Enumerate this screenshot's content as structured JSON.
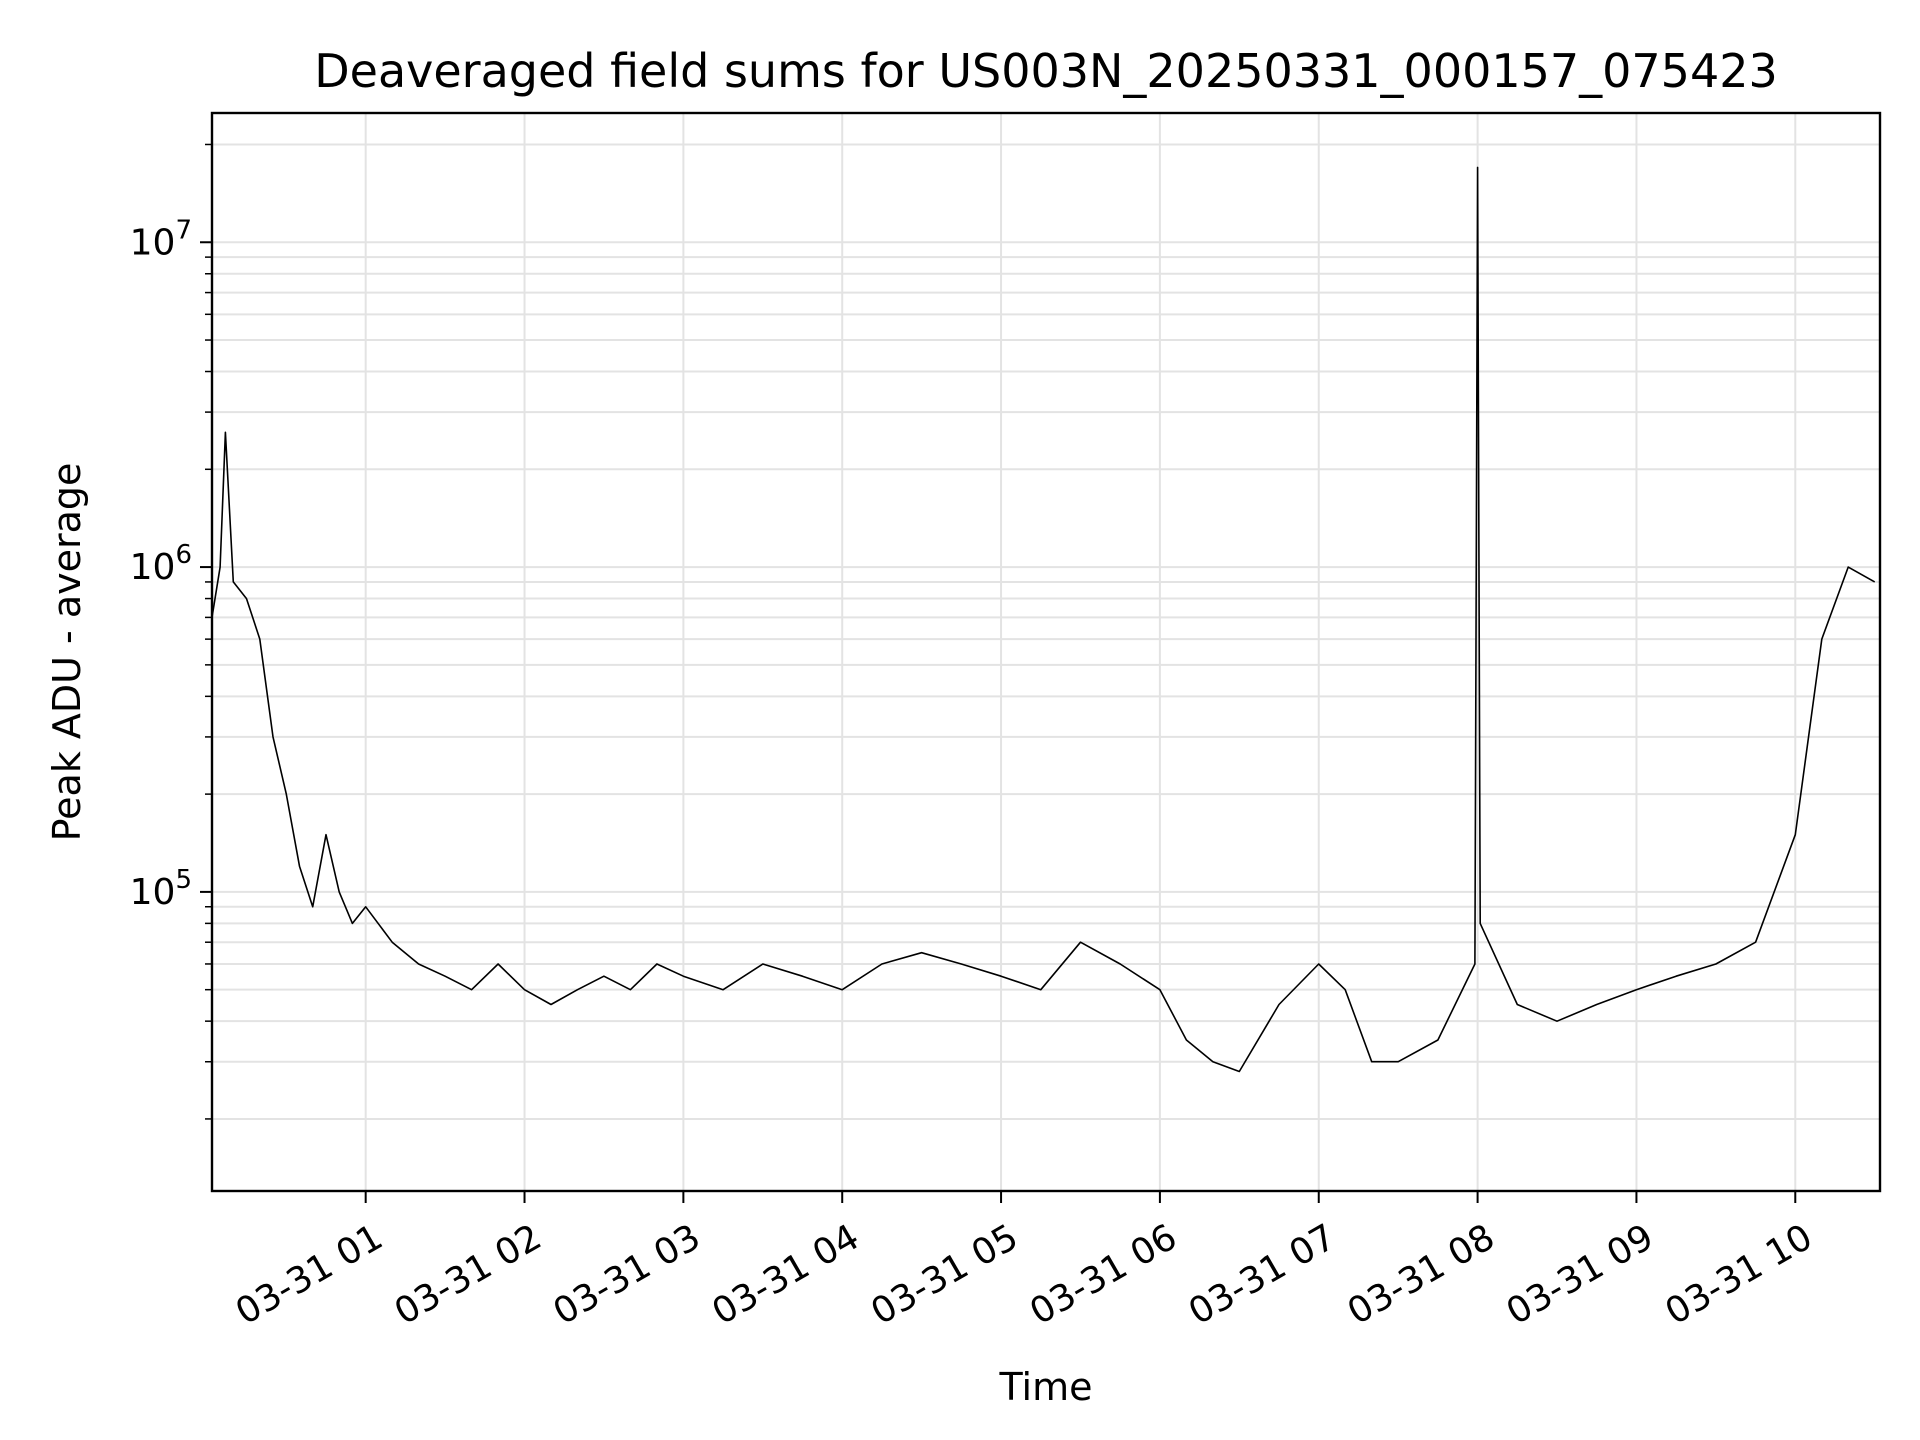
{
  "chart_data": {
    "type": "line",
    "title": "Deaveraged field sums for US003N_20250331_000157_075423",
    "xlabel": "Time",
    "ylabel": "Peak ADU - average",
    "yscale": "log",
    "ylim": [
      12000,
      25000000
    ],
    "xlim": [
      "2025-03-31 00:01:57",
      "2025-03-31 10:32:00"
    ],
    "x_ticks": [
      "03-31 01",
      "03-31 02",
      "03-31 03",
      "03-31 04",
      "03-31 05",
      "03-31 06",
      "03-31 07",
      "03-31 08",
      "03-31 09",
      "03-31 10"
    ],
    "y_ticks": [
      {
        "base": "10",
        "exp": "5",
        "value": 100000
      },
      {
        "base": "10",
        "exp": "6",
        "value": 1000000
      },
      {
        "base": "10",
        "exp": "7",
        "value": 10000000
      }
    ],
    "grid": true,
    "line_color": "#000000",
    "series": [
      {
        "x": [
          "2025-03-31 00:01:57",
          "2025-03-31 00:05",
          "2025-03-31 00:07",
          "2025-03-31 00:10",
          "2025-03-31 00:15",
          "2025-03-31 00:20",
          "2025-03-31 00:25",
          "2025-03-31 00:30",
          "2025-03-31 00:35",
          "2025-03-31 00:40",
          "2025-03-31 00:45",
          "2025-03-31 00:50",
          "2025-03-31 00:55",
          "2025-03-31 01:00",
          "2025-03-31 01:10",
          "2025-03-31 01:20",
          "2025-03-31 01:30",
          "2025-03-31 01:40",
          "2025-03-31 01:50",
          "2025-03-31 02:00",
          "2025-03-31 02:10",
          "2025-03-31 02:20",
          "2025-03-31 02:30",
          "2025-03-31 02:40",
          "2025-03-31 02:50",
          "2025-03-31 03:00",
          "2025-03-31 03:15",
          "2025-03-31 03:30",
          "2025-03-31 03:45",
          "2025-03-31 04:00",
          "2025-03-31 04:15",
          "2025-03-31 04:30",
          "2025-03-31 04:45",
          "2025-03-31 05:00",
          "2025-03-31 05:15",
          "2025-03-31 05:30",
          "2025-03-31 05:45",
          "2025-03-31 06:00",
          "2025-03-31 06:10",
          "2025-03-31 06:20",
          "2025-03-31 06:30",
          "2025-03-31 06:45",
          "2025-03-31 07:00",
          "2025-03-31 07:10",
          "2025-03-31 07:20",
          "2025-03-31 07:30",
          "2025-03-31 07:45",
          "2025-03-31 07:59",
          "2025-03-31 08:00",
          "2025-03-31 08:01",
          "2025-03-31 08:15",
          "2025-03-31 08:30",
          "2025-03-31 08:45",
          "2025-03-31 09:00",
          "2025-03-31 09:15",
          "2025-03-31 09:30",
          "2025-03-31 09:45",
          "2025-03-31 10:00",
          "2025-03-31 10:10",
          "2025-03-31 10:20",
          "2025-03-31 10:30"
        ],
        "y": [
          700000,
          1000000,
          2600000,
          900000,
          800000,
          600000,
          300000,
          200000,
          120000,
          90000,
          150000,
          100000,
          80000,
          90000,
          70000,
          60000,
          55000,
          50000,
          60000,
          50000,
          45000,
          50000,
          55000,
          50000,
          60000,
          55000,
          50000,
          60000,
          55000,
          50000,
          60000,
          65000,
          60000,
          55000,
          50000,
          70000,
          60000,
          50000,
          35000,
          30000,
          28000,
          45000,
          60000,
          50000,
          30000,
          30000,
          35000,
          60000,
          17000000,
          80000,
          45000,
          40000,
          45000,
          50000,
          55000,
          60000,
          70000,
          150000,
          600000,
          1000000,
          900000
        ]
      }
    ]
  }
}
